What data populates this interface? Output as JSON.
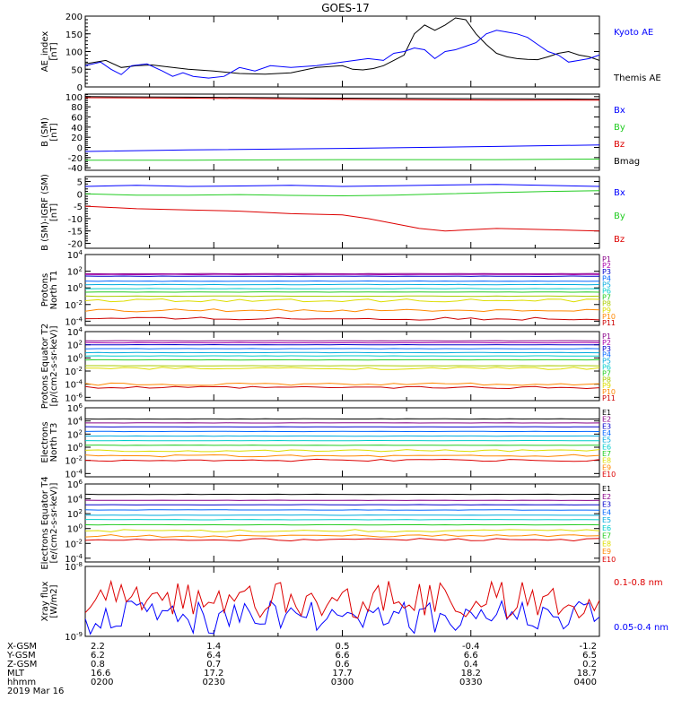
{
  "title": "GOES-17",
  "date_label": "2019 Mar 16",
  "colors": {
    "black": "#000000",
    "blue": "#0000ff",
    "green": "#22cc22",
    "red": "#dd0000",
    "proton_channels": [
      "#880088",
      "#aa00aa",
      "#0000cc",
      "#0066ff",
      "#00aadd",
      "#00cccc",
      "#22cc22",
      "#aacc00",
      "#dddd00",
      "#ff8800",
      "#cc0000"
    ],
    "electron_channels": [
      "#000000",
      "#880088",
      "#0000cc",
      "#0066ff",
      "#00aadd",
      "#00cccc",
      "#22cc22",
      "#dddd00",
      "#ff8800",
      "#dd0000"
    ]
  },
  "ephemeris": {
    "rows": [
      {
        "label": "X-GSM",
        "values": [
          "2.2",
          "1.4",
          "0.5",
          "-0.4",
          "-1.2"
        ]
      },
      {
        "label": "Y-GSM",
        "values": [
          "6.2",
          "6.4",
          "6.6",
          "6.6",
          "6.5"
        ]
      },
      {
        "label": "Z-GSM",
        "values": [
          "0.8",
          "0.7",
          "0.6",
          "0.4",
          "0.2"
        ]
      },
      {
        "label": "MLT",
        "values": [
          "16.6",
          "17.2",
          "17.7",
          "18.2",
          "18.7"
        ]
      },
      {
        "label": "hhmm",
        "values": [
          "0200",
          "0230",
          "0300",
          "0330",
          "0400"
        ]
      }
    ]
  },
  "chart_data": [
    {
      "type": "line",
      "name": "ae",
      "ylabel": "AE_index [nT]",
      "ylim": [
        0,
        200
      ],
      "yticks": [
        "0",
        "50",
        "100",
        "150",
        "200"
      ],
      "legend": [
        {
          "text": "Kyoto AE",
          "color": "#0000ff"
        },
        {
          "text": "Themis AE",
          "color": "#000000"
        }
      ],
      "series": [
        {
          "name": "Themis AE",
          "color": "#000000",
          "x": [
            0,
            4,
            7,
            10,
            13,
            17,
            20,
            25,
            30,
            35,
            40,
            45,
            50,
            52,
            54,
            56,
            58,
            60,
            62,
            64,
            66,
            68,
            70,
            72,
            74,
            76,
            78,
            80,
            82,
            84,
            86,
            88,
            90,
            92,
            94,
            96,
            98,
            100
          ],
          "y": [
            65,
            75,
            55,
            60,
            62,
            55,
            50,
            45,
            38,
            36,
            40,
            55,
            60,
            50,
            48,
            52,
            60,
            75,
            90,
            150,
            175,
            160,
            175,
            195,
            190,
            150,
            120,
            95,
            85,
            80,
            78,
            77,
            85,
            95,
            100,
            90,
            85,
            75
          ]
        },
        {
          "name": "Kyoto AE",
          "color": "#0000ff",
          "x": [
            0,
            3,
            5,
            7,
            9,
            12,
            15,
            17,
            19,
            21,
            24,
            27,
            30,
            33,
            36,
            40,
            45,
            50,
            55,
            58,
            60,
            62,
            64,
            66,
            68,
            70,
            72,
            74,
            76,
            78,
            80,
            82,
            84,
            86,
            88,
            90,
            92,
            94,
            96,
            98,
            100
          ],
          "y": [
            60,
            70,
            50,
            35,
            60,
            65,
            45,
            30,
            40,
            30,
            25,
            30,
            55,
            45,
            60,
            55,
            60,
            70,
            80,
            75,
            95,
            100,
            110,
            105,
            80,
            100,
            105,
            115,
            125,
            150,
            160,
            155,
            150,
            140,
            120,
            100,
            90,
            70,
            75,
            80,
            90
          ]
        }
      ]
    },
    {
      "type": "line",
      "name": "bsm",
      "ylabel": "B (SM) [nT]",
      "ylim": [
        -45,
        105
      ],
      "yticks": [
        "-40",
        "-20",
        "0",
        "20",
        "40",
        "60",
        "80",
        "100"
      ],
      "legend": [
        {
          "text": "Bx",
          "color": "#0000ff"
        },
        {
          "text": "By",
          "color": "#22cc22"
        },
        {
          "text": "Bz",
          "color": "#dd0000"
        },
        {
          "text": "Bmag",
          "color": "#000000"
        }
      ],
      "series": [
        {
          "name": "Bmag",
          "color": "#000000",
          "x": [
            0,
            20,
            50,
            80,
            100
          ],
          "y": [
            100,
            99,
            97,
            96,
            95
          ]
        },
        {
          "name": "Bz",
          "color": "#dd0000",
          "x": [
            0,
            20,
            50,
            80,
            100
          ],
          "y": [
            98,
            97,
            95,
            93,
            93
          ]
        },
        {
          "name": "Bx",
          "color": "#0000ff",
          "x": [
            0,
            20,
            50,
            80,
            100
          ],
          "y": [
            -8,
            -5,
            -2,
            2,
            5
          ]
        },
        {
          "name": "By",
          "color": "#22cc22",
          "x": [
            0,
            20,
            50,
            80,
            100
          ],
          "y": [
            -25,
            -25,
            -24,
            -24,
            -23
          ]
        }
      ]
    },
    {
      "type": "line",
      "name": "bdiff",
      "ylabel": "B (SM)-IGRF (SM) [nT]",
      "ylim": [
        -22,
        7
      ],
      "yticks": [
        "-20",
        "-15",
        "-10",
        "-5",
        "0",
        "5"
      ],
      "legend": [
        {
          "text": "Bx",
          "color": "#0000ff"
        },
        {
          "text": "By",
          "color": "#22cc22"
        },
        {
          "text": "Bz",
          "color": "#dd0000"
        }
      ],
      "series": [
        {
          "name": "Bx",
          "color": "#0000ff",
          "x": [
            0,
            10,
            20,
            30,
            40,
            50,
            60,
            70,
            80,
            90,
            100
          ],
          "y": [
            3,
            3.5,
            3,
            3.2,
            3.5,
            3,
            3.3,
            3.6,
            3.8,
            3.4,
            3
          ]
        },
        {
          "name": "By",
          "color": "#22cc22",
          "x": [
            0,
            10,
            20,
            30,
            40,
            50,
            60,
            70,
            80,
            90,
            100
          ],
          "y": [
            0,
            -0.5,
            -0.5,
            -0.3,
            -0.6,
            -0.8,
            -0.5,
            0,
            0.5,
            1,
            1.3
          ]
        },
        {
          "name": "Bz",
          "color": "#dd0000",
          "x": [
            0,
            5,
            10,
            20,
            30,
            40,
            50,
            55,
            60,
            65,
            70,
            75,
            80,
            90,
            100
          ],
          "y": [
            -5,
            -5.5,
            -6,
            -6.5,
            -7,
            -8,
            -8.5,
            -10,
            -12,
            -14,
            -15,
            -14.5,
            -14,
            -14.5,
            -15
          ]
        }
      ]
    },
    {
      "type": "line",
      "name": "p_north",
      "ylabel": "Protons North T1",
      "log": true,
      "ylim": [
        -4.5,
        4
      ],
      "yticks": [
        "10^4",
        "10^2",
        "10^0",
        "10^-2",
        "10^-4"
      ],
      "ytick_exps": [
        4,
        2,
        0,
        -2,
        -4
      ],
      "labels": [
        "P1",
        "P2",
        "P3",
        "P4",
        "P5",
        "P6",
        "P7",
        "P8",
        "P9",
        "P10",
        "P11"
      ],
      "levels": [
        1.7,
        1.6,
        1.4,
        0.8,
        0.4,
        -0.1,
        -0.5,
        -1,
        -1.5,
        -2.7,
        -3.7
      ]
    },
    {
      "type": "line",
      "name": "p_equator",
      "ylabel": "Protons Equator T2 [p/(cm2-s-sr-keV)]",
      "log": true,
      "ylim": [
        -6.5,
        4
      ],
      "yticks": [
        "10^4",
        "10^2",
        "10^0",
        "10^-2",
        "10^-4",
        "10^-6"
      ],
      "ytick_exps": [
        4,
        2,
        0,
        -2,
        -4,
        -6
      ],
      "labels": [
        "P1",
        "P2",
        "P3",
        "P4",
        "P5",
        "P6",
        "P7",
        "P8",
        "P9",
        "P10",
        "P11"
      ],
      "levels": [
        2.6,
        2.3,
        2,
        1.4,
        0.8,
        0.3,
        -0.3,
        -1.2,
        -1.6,
        -4,
        -4.5
      ]
    },
    {
      "type": "line",
      "name": "e_north",
      "ylabel": "Electrons North T3",
      "log": true,
      "ylim": [
        -4.5,
        6
      ],
      "yticks": [
        "10^6",
        "10^4",
        "10^2",
        "10^0",
        "10^-2",
        "10^-4"
      ],
      "ytick_exps": [
        6,
        4,
        2,
        0,
        -2,
        -4
      ],
      "labels": [
        "E1",
        "E2",
        "E3",
        "E4",
        "E5",
        "E6",
        "E7",
        "E8",
        "E9",
        "E10"
      ],
      "levels": [
        4.3,
        3.7,
        3.1,
        2.4,
        1.7,
        1,
        0.3,
        -0.5,
        -1.3,
        -2
      ]
    },
    {
      "type": "line",
      "name": "e_equator",
      "ylabel": "Electrons Equator T4 [e/(cm2-s-sr-keV)]",
      "log": true,
      "ylim": [
        -4.5,
        6
      ],
      "yticks": [
        "10^6",
        "10^4",
        "10^2",
        "10^0",
        "10^-2",
        "10^-4"
      ],
      "ytick_exps": [
        6,
        4,
        2,
        0,
        -2,
        -4
      ],
      "labels": [
        "E1",
        "E2",
        "E3",
        "E4",
        "E5",
        "E6",
        "E7",
        "E8",
        "E9",
        "E10"
      ],
      "levels": [
        4.6,
        3.8,
        3.2,
        2.5,
        1.8,
        1.2,
        0.5,
        -0.3,
        -1,
        -1.5
      ]
    },
    {
      "type": "line",
      "name": "xray",
      "ylabel": "Xray flux [W/m2]",
      "log": true,
      "ylim": [
        -9,
        -8
      ],
      "yticks": [
        "10^-8",
        "10^-9"
      ],
      "ytick_exps": [
        -8,
        -9
      ],
      "legend": [
        {
          "text": "0.1-0.8 nm",
          "color": "#dd0000"
        },
        {
          "text": "0.05-0.4 nm",
          "color": "#0000ff"
        }
      ]
    }
  ]
}
